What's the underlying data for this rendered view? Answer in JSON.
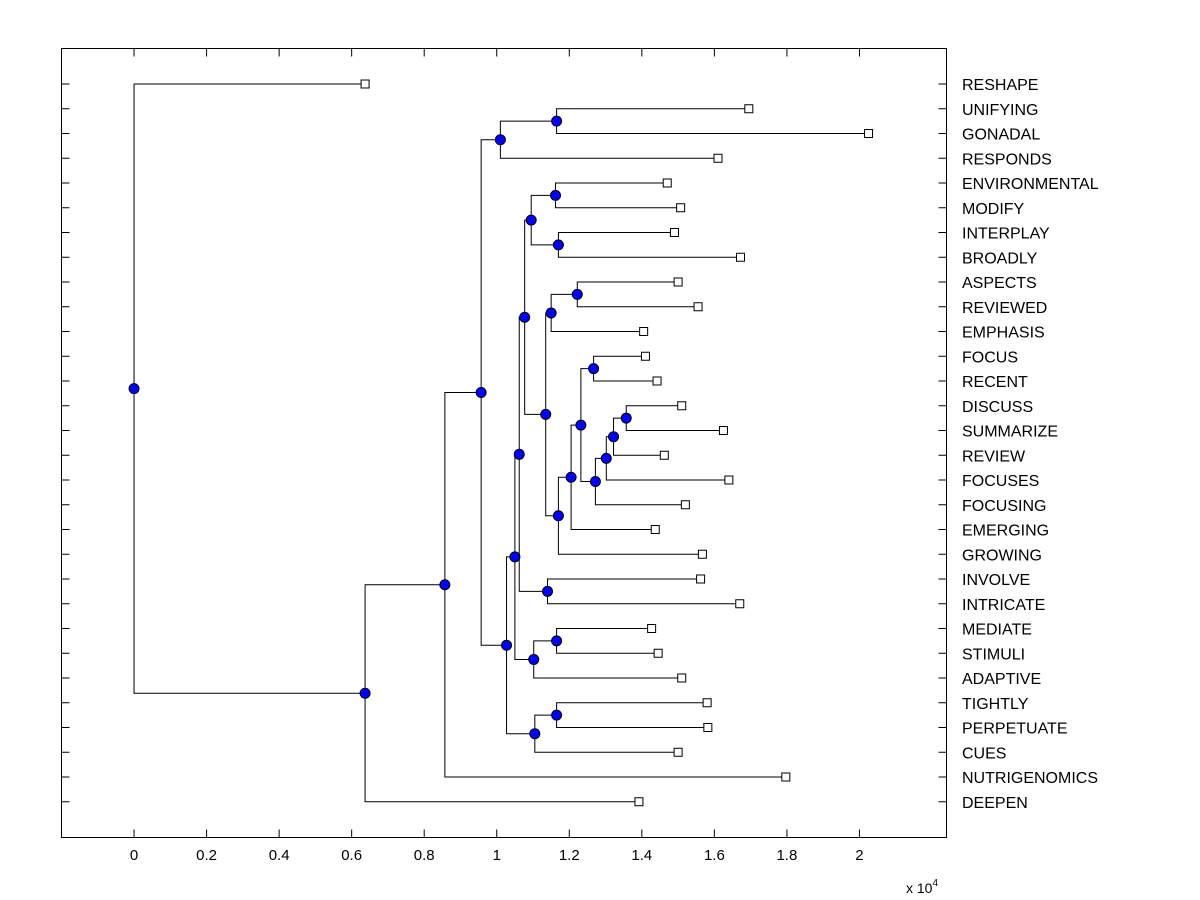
{
  "chart_data": {
    "type": "dendrogram",
    "x_ticks": [
      "0",
      "0.2",
      "0.4",
      "0.6",
      "0.8",
      "1",
      "1.2",
      "1.4",
      "1.6",
      "1.8",
      "2"
    ],
    "x_tick_values": [
      0,
      0.2,
      0.4,
      0.6,
      0.8,
      1.0,
      1.2,
      1.4,
      1.6,
      1.8,
      2.0
    ],
    "xlim": [
      -0.2,
      2.24
    ],
    "x_multiplier_label": "x 10",
    "x_multiplier_exp": "4",
    "grid": false,
    "colors": {
      "internal_node": "#0000ff",
      "leaf_node": "#ffffff",
      "line": "#000000"
    },
    "leaves": [
      {
        "name": "RESHAPE",
        "x": 0.637
      },
      {
        "name": "UNIFYING",
        "x": 1.695
      },
      {
        "name": "GONADAL",
        "x": 2.025
      },
      {
        "name": "RESPONDS",
        "x": 1.61
      },
      {
        "name": "ENVIRONMENTAL",
        "x": 1.47
      },
      {
        "name": "MODIFY",
        "x": 1.507
      },
      {
        "name": "INTERPLAY",
        "x": 1.49
      },
      {
        "name": "BROADLY",
        "x": 1.672
      },
      {
        "name": "ASPECTS",
        "x": 1.5
      },
      {
        "name": "REVIEWED",
        "x": 1.555
      },
      {
        "name": "EMPHASIS",
        "x": 1.405
      },
      {
        "name": "FOCUS",
        "x": 1.41
      },
      {
        "name": "RECENT",
        "x": 1.442
      },
      {
        "name": "DISCUSS",
        "x": 1.51
      },
      {
        "name": "SUMMARIZE",
        "x": 1.625
      },
      {
        "name": "REVIEW",
        "x": 1.462
      },
      {
        "name": "FOCUSES",
        "x": 1.64
      },
      {
        "name": "FOCUSING",
        "x": 1.52
      },
      {
        "name": "EMERGING",
        "x": 1.437
      },
      {
        "name": "GROWING",
        "x": 1.567
      },
      {
        "name": "INVOLVE",
        "x": 1.562
      },
      {
        "name": "INTRICATE",
        "x": 1.67
      },
      {
        "name": "MEDIATE",
        "x": 1.427
      },
      {
        "name": "STIMULI",
        "x": 1.445
      },
      {
        "name": "ADAPTIVE",
        "x": 1.51
      },
      {
        "name": "TIGHTLY",
        "x": 1.58
      },
      {
        "name": "PERPETUATE",
        "x": 1.582
      },
      {
        "name": "CUES",
        "x": 1.5
      },
      {
        "name": "NUTRIGENOMICS",
        "x": 1.797
      },
      {
        "name": "DEEPEN",
        "x": 1.392
      }
    ],
    "merges": [
      {
        "a": "L1",
        "b": "L2",
        "x": 1.165
      },
      {
        "a": "N0",
        "b": "L3",
        "x": 1.01
      },
      {
        "a": "L4",
        "b": "L5",
        "x": 1.162
      },
      {
        "a": "L6",
        "b": "L7",
        "x": 1.17
      },
      {
        "a": "N2",
        "b": "N3",
        "x": 1.095
      },
      {
        "a": "L8",
        "b": "L9",
        "x": 1.222
      },
      {
        "a": "N5",
        "b": "L10",
        "x": 1.15
      },
      {
        "a": "L11",
        "b": "L12",
        "x": 1.267
      },
      {
        "a": "L13",
        "b": "L14",
        "x": 1.357
      },
      {
        "a": "N8",
        "b": "L15",
        "x": 1.322
      },
      {
        "a": "N9",
        "b": "L16",
        "x": 1.302
      },
      {
        "a": "N10",
        "b": "L17",
        "x": 1.272
      },
      {
        "a": "N7",
        "b": "N11",
        "x": 1.232
      },
      {
        "a": "N12",
        "b": "L18",
        "x": 1.205
      },
      {
        "a": "N13",
        "b": "L19",
        "x": 1.17
      },
      {
        "a": "N6",
        "b": "N14",
        "x": 1.135
      },
      {
        "a": "N4",
        "b": "N15",
        "x": 1.077
      },
      {
        "a": "L20",
        "b": "L21",
        "x": 1.14
      },
      {
        "a": "N16",
        "b": "N17",
        "x": 1.062
      },
      {
        "a": "L22",
        "b": "L23",
        "x": 1.165
      },
      {
        "a": "N19",
        "b": "L24",
        "x": 1.102
      },
      {
        "a": "N18",
        "b": "N20",
        "x": 1.05
      },
      {
        "a": "L25",
        "b": "L26",
        "x": 1.165
      },
      {
        "a": "N22",
        "b": "L27",
        "x": 1.105
      },
      {
        "a": "N21",
        "b": "N23",
        "x": 1.027
      },
      {
        "a": "N1",
        "b": "N24",
        "x": 0.957
      },
      {
        "a": "N25",
        "b": "L28",
        "x": 0.857
      },
      {
        "a": "N26",
        "b": "L29",
        "x": 0.637
      },
      {
        "a": "L0",
        "b": "N27",
        "x": 0.0
      }
    ]
  }
}
